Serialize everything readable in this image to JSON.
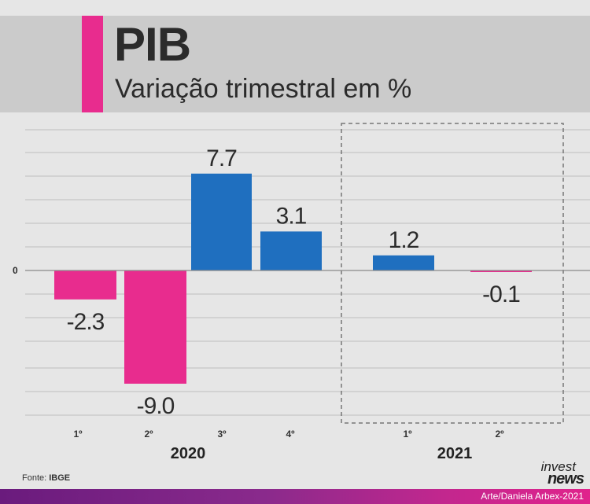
{
  "header": {
    "title": "PIB",
    "subtitle": "Variação trimestral em %",
    "accent_color": "#e82c8e",
    "band_color": "#cbcbcb"
  },
  "chart_data": {
    "type": "bar",
    "title": "PIB",
    "subtitle": "Variação trimestral em %",
    "categories": [
      "1º",
      "2º",
      "3º",
      "4º",
      "1º",
      "2º"
    ],
    "values": [
      -2.3,
      -9.0,
      7.7,
      3.1,
      1.2,
      -0.1
    ],
    "value_labels": [
      "-2.3",
      "-9.0",
      "7.7",
      "3.1",
      "1.2",
      "-0.1"
    ],
    "groups": [
      {
        "label": "2020",
        "categories": [
          0,
          1,
          2,
          3
        ]
      },
      {
        "label": "2021",
        "categories": [
          4,
          5
        ],
        "highlighted": true
      }
    ],
    "zero_label": "0",
    "ylim": [
      -12,
      12
    ],
    "grid": true,
    "positive_color": "#1f6fbf",
    "negative_color": "#e82c8e",
    "xlabel": "",
    "ylabel": ""
  },
  "footer": {
    "source_prefix": "Fonte: ",
    "source_name": "IBGE",
    "credit": "Arte/Daniela Arbex-2021",
    "logo_top": "invest",
    "logo_bottom": "news"
  }
}
